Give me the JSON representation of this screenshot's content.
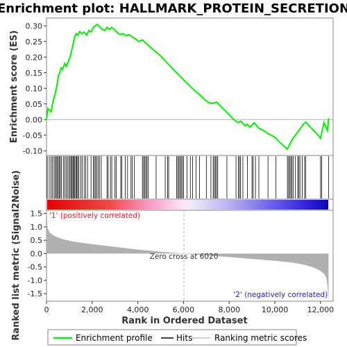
{
  "chart_data": {
    "type": "line",
    "title": "Enrichment plot: HALLMARK_PROTEIN_SECRETION",
    "top_panel": {
      "ylabel": "Enrichment score (ES)",
      "ylim": [
        -0.115,
        0.325
      ],
      "yticks": [
        -0.1,
        -0.05,
        0.0,
        0.05,
        0.1,
        0.15,
        0.2,
        0.25,
        0.3
      ],
      "ytick_labels": [
        "-0.10",
        "-0.05",
        "0.00",
        "0.05",
        "0.10",
        "0.15",
        "0.20",
        "0.25",
        "0.30"
      ],
      "series": [
        {
          "name": "Enrichment profile",
          "color": "#00ee00",
          "x": [
            0,
            60,
            200,
            260,
            330,
            400,
            460,
            520,
            580,
            640,
            700,
            800,
            870,
            950,
            1030,
            1100,
            1160,
            1230,
            1300,
            1380,
            1450,
            1550,
            1650,
            1760,
            1850,
            1950,
            2050,
            2130,
            2200,
            2300,
            2420,
            2550,
            2650,
            2760,
            2850,
            2950,
            3050,
            3200,
            3350,
            3500,
            3600,
            3750,
            3900,
            4050,
            4200,
            4350,
            4500,
            4700,
            4900,
            5100,
            5300,
            5500,
            5700,
            5900,
            6100,
            6300,
            6500,
            6700,
            6900,
            7100,
            7300,
            7450,
            7600,
            7800,
            8000,
            8200,
            8400,
            8500,
            8600,
            8700,
            8800,
            8900,
            9000,
            9100,
            9200,
            9300,
            9500,
            9700,
            9900,
            10050,
            10200,
            10400,
            10550,
            10650,
            10750,
            10850,
            10950,
            11050,
            11150,
            11250,
            11350,
            11500,
            11700,
            11900,
            12000,
            12150,
            12300,
            12350
          ],
          "y": [
            0.0,
            0.035,
            0.025,
            0.05,
            0.07,
            0.09,
            0.11,
            0.14,
            0.15,
            0.165,
            0.16,
            0.18,
            0.17,
            0.185,
            0.2,
            0.22,
            0.24,
            0.265,
            0.275,
            0.27,
            0.282,
            0.275,
            0.28,
            0.27,
            0.285,
            0.28,
            0.295,
            0.3,
            0.305,
            0.3,
            0.29,
            0.285,
            0.295,
            0.288,
            0.295,
            0.29,
            0.282,
            0.272,
            0.275,
            0.268,
            0.272,
            0.265,
            0.258,
            0.25,
            0.255,
            0.245,
            0.235,
            0.222,
            0.21,
            0.196,
            0.18,
            0.165,
            0.15,
            0.135,
            0.12,
            0.106,
            0.092,
            0.08,
            0.066,
            0.054,
            0.052,
            0.056,
            0.045,
            0.03,
            0.016,
            0.0,
            -0.01,
            -0.005,
            -0.012,
            -0.02,
            -0.015,
            -0.025,
            -0.018,
            -0.01,
            -0.02,
            -0.028,
            -0.035,
            -0.045,
            -0.052,
            -0.06,
            -0.072,
            -0.085,
            -0.095,
            -0.08,
            -0.065,
            -0.055,
            -0.045,
            -0.035,
            -0.025,
            -0.015,
            -0.008,
            -0.02,
            -0.035,
            -0.05,
            -0.06,
            -0.01,
            -0.035,
            0.003
          ]
        }
      ]
    },
    "hits": [
      30,
      120,
      200,
      260,
      330,
      380,
      430,
      470,
      520,
      560,
      610,
      660,
      740,
      800,
      860,
      920,
      980,
      1030,
      1080,
      1120,
      1160,
      1200,
      1240,
      1290,
      1330,
      1370,
      1420,
      1500,
      1560,
      1650,
      1720,
      1800,
      1950,
      2050,
      2100,
      2150,
      2200,
      2260,
      2320,
      2400,
      2650,
      2700,
      2800,
      2860,
      3000,
      3050,
      3250,
      3300,
      3450,
      3550,
      3700,
      3750,
      3850,
      4200,
      4250,
      4300,
      4350,
      4400,
      4450,
      4800,
      5200,
      5300,
      5350,
      5700,
      5750,
      5800,
      5850,
      5900,
      5950,
      6000,
      6150,
      6300,
      6400,
      6550,
      6700,
      7000,
      7200,
      7300,
      7350,
      7400,
      7450,
      7500,
      7900,
      8300,
      8400,
      8450,
      8500,
      8600,
      8800,
      9000,
      9050,
      9150,
      9300,
      9700,
      10050,
      10550,
      10600,
      10650,
      10700,
      10750,
      10800,
      10900,
      11000,
      11050,
      11100,
      11200,
      11300,
      11350,
      12000,
      12050,
      12350
    ],
    "bottom_panel": {
      "ylabel": "Ranked list metric (Signal2Noise)",
      "xlabel": "Rank in Ordered Dataset",
      "ylim": [
        -1.78,
        1.62
      ],
      "yticks": [
        -1.5,
        -1.0,
        -0.5,
        0.0,
        0.5,
        1.0,
        1.5
      ],
      "ytick_labels": [
        "-1.5",
        "-1.0",
        "-0.5",
        "0.0",
        "0.5",
        "1.0",
        "1.5"
      ],
      "metric_profile": {
        "x": [
          0,
          50,
          150,
          300,
          500,
          800,
          1200,
          2000,
          3000,
          4000,
          5000,
          6020,
          7000,
          8000,
          9000,
          10000,
          10800,
          11300,
          11700,
          12000,
          12150,
          12250,
          12300,
          12330,
          12350
        ],
        "y": [
          1.6,
          0.95,
          0.78,
          0.68,
          0.6,
          0.52,
          0.45,
          0.35,
          0.25,
          0.15,
          0.07,
          0.0,
          -0.07,
          -0.13,
          -0.2,
          -0.27,
          -0.34,
          -0.42,
          -0.52,
          -0.65,
          -0.75,
          -0.9,
          -1.15,
          -1.5,
          -1.72
        ]
      }
    },
    "xlim": [
      0,
      12400
    ],
    "xticks": [
      0,
      2000,
      4000,
      6000,
      8000,
      10000,
      12000
    ],
    "xtick_labels": [
      "0",
      "2,000",
      "4,000",
      "6,000",
      "8,000",
      "10,000",
      "12,000"
    ],
    "zero_cross": 6020,
    "annotations": {
      "positive": "'1' (positively correlated)",
      "negative": "'2' (negatively correlated)",
      "zero_cross": "Zero cross at 6020"
    },
    "legend": {
      "placement": "bottom",
      "items": [
        {
          "label": "Enrichment profile",
          "color": "#00ee00"
        },
        {
          "label": "Hits",
          "color": "#000000"
        },
        {
          "label": "Ranking metric scores",
          "color": "#c0c0c0"
        }
      ]
    },
    "colors": {
      "positive_text": "#e02020",
      "negative_text": "#2020cc",
      "metric_fill": "#b0b0b0"
    }
  }
}
